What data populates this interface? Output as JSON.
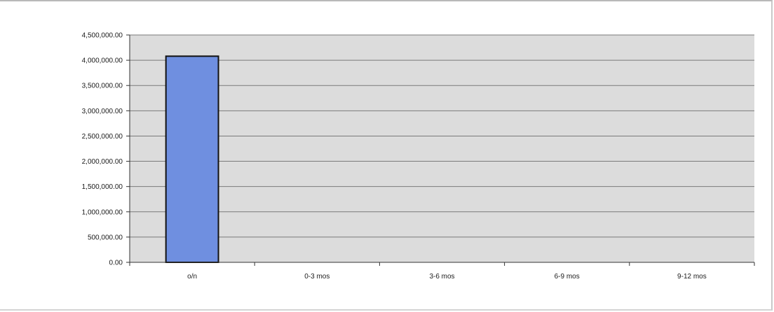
{
  "chart_data": {
    "type": "bar",
    "title": "",
    "xlabel": "",
    "ylabel": "",
    "categories": [
      "o/n",
      "0-3 mos",
      "3-6 mos",
      "6-9 mos",
      "9-12 mos"
    ],
    "values": [
      4080000,
      0,
      0,
      0,
      0
    ],
    "ylim": [
      0,
      4500000
    ],
    "ytick_step": 500000,
    "ytick_labels": [
      "0.00",
      "500,000.00",
      "1,000,000.00",
      "1,500,000.00",
      "2,000,000.00",
      "2,500,000.00",
      "3,000,000.00",
      "3,500,000.00",
      "4,000,000.00",
      "4,500,000.00"
    ],
    "grid": true,
    "legend": "none",
    "colors": {
      "bar": "#6f8fe0",
      "bar_stroke": "#111111",
      "plot_background": "#dcdcdc",
      "gridline": "#7a7a7a",
      "axis": "#333333"
    }
  }
}
